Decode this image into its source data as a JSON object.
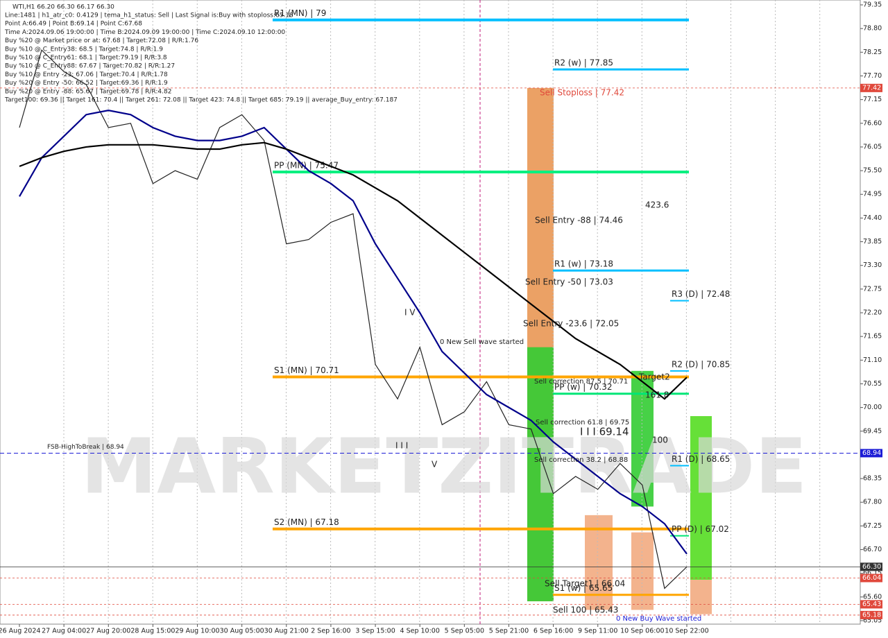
{
  "chart_data": {
    "type": "line",
    "title": "WTI,H1  66.20 66.30 66.17 66.30",
    "info_lines": [
      "Line:1481 | h1_atr_c0: 0.4129 | tema_h1_status: Sell | Last Signal is:Buy with stoploss:65.18",
      "Point A:66.49 | Point B:69.14 | Point C:67.68",
      "Time A:2024.09.06 19:00:00 | Time B:2024.09.09 19:00:00 | Time C:2024.09.10 12:00:00",
      "Buy %20 @ Market price or at: 67.68 | Target:72.08 | R/R:1.76",
      "Buy %10 @ C_Entry38: 68.5 | Target:74.8 | R/R:1.9",
      "Buy %10 @ C_Entry61: 68.1 | Target:79.19 | R/R:3.8",
      "Buy %10 @ C_Entry88: 67.67 | Target:70.82 | R/R:1.27",
      "Buy %10 @ Entry -23: 67.06 | Target:70.4 | R/R:1.78",
      "Buy %20 @ Entry -50: 66.52 | Target:69.36 | R/R:1.9",
      "Buy %20 @ Entry -88: 65.67 | Target:69.78 | R/R:4.82",
      "Target100: 69.36 || Target 161: 70.4 || Target 261: 72.08 || Target 423: 74.8 || Target 685: 79.19 || average_Buy_entry: 67.187"
    ],
    "watermark": "MARKETZITRADE",
    "categories": [
      "26 Aug 2024",
      null,
      "27 Aug 04:00",
      null,
      "27 Aug 20:00",
      null,
      "28 Aug 15:00",
      null,
      "29 Aug 10:00",
      null,
      "30 Aug 05:00",
      null,
      "30 Aug 21:00",
      null,
      "2 Sep 16:00",
      null,
      "3 Sep 15:00",
      null,
      "4 Sep 10:00",
      null,
      "5 Sep 05:00",
      null,
      "5 Sep 21:00",
      null,
      "6 Sep 16:00",
      null,
      "9 Sep 11:00",
      null,
      "10 Sep 06:00",
      null,
      "10 Sep 22:00"
    ],
    "series": [
      {
        "color": "#222222",
        "values": [
          76.5,
          78.3,
          77.8,
          77.5,
          76.5,
          76.6,
          75.2,
          75.5,
          75.3,
          76.5,
          76.8,
          76.2,
          73.8,
          73.9,
          74.3,
          74.5,
          71.0,
          70.2,
          71.4,
          69.6,
          69.9,
          70.6,
          69.6,
          69.5,
          68.0,
          68.4,
          68.1,
          68.7,
          68.2,
          65.8,
          66.3
        ]
      },
      {
        "color": "#00008b",
        "values": [
          74.9,
          75.8,
          76.3,
          76.8,
          76.9,
          76.8,
          76.5,
          76.3,
          76.2,
          76.2,
          76.3,
          76.5,
          76.0,
          75.5,
          75.2,
          74.8,
          73.8,
          73.0,
          72.2,
          71.3,
          70.8,
          70.3,
          70.0,
          69.7,
          69.2,
          68.8,
          68.4,
          68.0,
          67.7,
          67.3,
          66.6
        ]
      },
      {
        "color": "#000000",
        "values": [
          75.6,
          75.8,
          75.95,
          76.05,
          76.1,
          76.1,
          76.1,
          76.05,
          76.0,
          76.0,
          76.1,
          76.15,
          76.0,
          75.8,
          75.6,
          75.4,
          75.1,
          74.8,
          74.4,
          74.0,
          73.6,
          73.2,
          72.8,
          72.4,
          72.0,
          71.6,
          71.3,
          71.0,
          70.6,
          70.2,
          70.7
        ]
      }
    ],
    "ylim": [
      65.05,
      79.35
    ],
    "yticks": [
      79.35,
      {
        "value": 78.8,
        "label": "78.80"
      },
      78.25,
      {
        "value": 77.7,
        "label": "77.70"
      },
      77.15,
      {
        "value": 76.6,
        "label": "76.60"
      },
      76.05,
      {
        "value": 75.5,
        "label": "75.50"
      },
      74.95,
      {
        "value": 74.4,
        "label": "74.40"
      },
      73.85,
      {
        "value": 73.3,
        "label": "73.30"
      },
      72.75,
      {
        "value": 72.2,
        "label": "72.20"
      },
      71.65,
      {
        "value": 71.1,
        "label": "71.10"
      },
      70.55,
      {
        "value": 70,
        "label": "70.00"
      },
      69.45,
      {
        "value": 68.9,
        "label": "68.90"
      },
      68.35,
      {
        "value": 67.8,
        "label": "67.80"
      },
      67.25,
      {
        "value": 66.7,
        "label": "66.70"
      },
      66.15,
      {
        "value": 65.6,
        "label": "65.60"
      },
      65.05
    ],
    "levels": [
      {
        "label": "R1 (MN) | 79",
        "value": 79,
        "color": "#00bfff"
      },
      {
        "label": "R2 (w) | 77.85",
        "value": 77.85,
        "color": "#00bfff"
      },
      {
        "label": "PP (MN) | 75.47",
        "value": 75.47,
        "color": "#00f080"
      },
      {
        "label": "R1 (w) | 73.18",
        "value": 73.18,
        "color": "#00bfff"
      },
      {
        "label": "R3 (D) | 72.48",
        "value": 72.48,
        "color": "#00bfff"
      },
      {
        "label": "S1 (MN) | 70.71",
        "value": 70.71,
        "color": "#ffa500"
      },
      {
        "label": "R2 (D) | 70.85",
        "value": 70.85,
        "color": "#00bfff"
      },
      {
        "label": "PP (w) | 70.32",
        "value": 70.32,
        "color": "#00e676"
      },
      {
        "label": "R1 (D) | 68.65",
        "value": 68.65,
        "color": "#00bfff"
      },
      {
        "label": "S2 (MN) | 67.18",
        "value": 67.18,
        "color": "#ffa500"
      },
      {
        "label": "PP (D) | 67.02",
        "value": 67.02,
        "color": "#00e676"
      },
      {
        "label": "S1 (w) | 65.65",
        "value": 65.65,
        "color": "#ffa500"
      },
      {
        "label": "FSB-HighToBreak | 68.94",
        "value": 68.94,
        "color": "#1c1cd6"
      }
    ],
    "price_marks": [
      {
        "value": 77.42,
        "label": "77.42",
        "color": "#e0483b"
      },
      {
        "value": 68.94,
        "label": "68.94",
        "color": "#1c1cd6"
      },
      {
        "value": 66.3,
        "label": "66.30",
        "color": "#333333"
      },
      {
        "value": 66.04,
        "label": "66.04",
        "color": "#e0483b"
      },
      {
        "value": 65.43,
        "label": "65.43",
        "color": "#e0483b"
      },
      {
        "value": 65.18,
        "label": "65.18",
        "color": "#e0483b"
      }
    ],
    "annotations": [
      "Sell Stoploss | 77.42",
      "Sell Entry -88 | 74.46",
      "Sell Entry -50 | 73.03",
      "Sell Entry -23.6 | 72.05",
      "0 New Sell wave started",
      "Sell correction 87.5 | 70.71",
      "Sell correction 61.8 | 69.75",
      "Sell correction 38.2 | 68.88",
      "Sell Target1 | 66.04",
      "Sell 100 | 65.43",
      "Target2",
      "161.8",
      "100",
      "423.6",
      "0 New Buy Wave started",
      "I V",
      "I I I",
      "V",
      "I I I 69.14"
    ]
  }
}
